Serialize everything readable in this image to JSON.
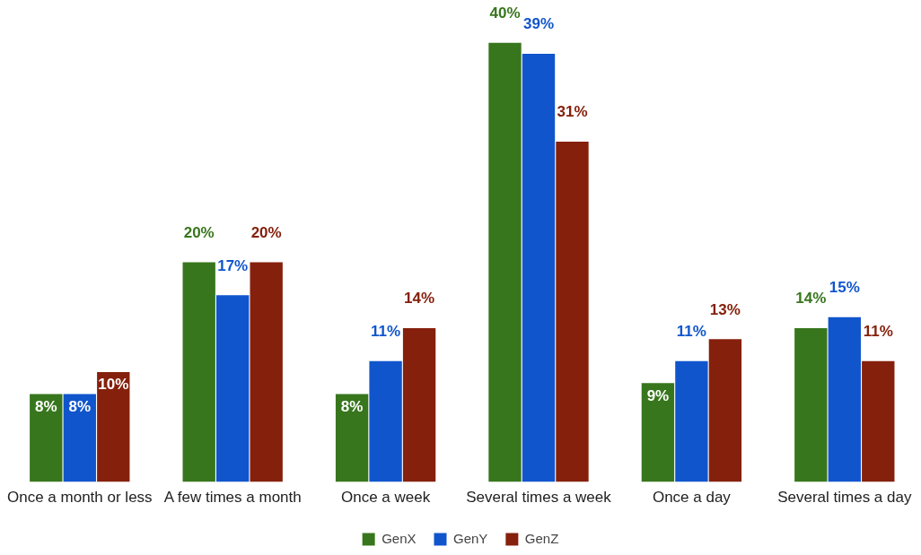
{
  "chart_data": {
    "type": "bar",
    "categories": [
      "Once a month or less",
      "A few times a month",
      "Once a week",
      "Several times a week",
      "Once a day",
      "Several times a day"
    ],
    "series": [
      {
        "name": "GenX",
        "color": "#38761d",
        "values": [
          8,
          20,
          8,
          40,
          9,
          14
        ],
        "value_labels": [
          "8%",
          "20%",
          "8%",
          "40%",
          "9%",
          "14%"
        ]
      },
      {
        "name": "GenY",
        "color": "#1155cc",
        "values": [
          8,
          17,
          11,
          39,
          11,
          15
        ],
        "value_labels": [
          "8%",
          "17%",
          "11%",
          "39%",
          "11%",
          "15%"
        ]
      },
      {
        "name": "GenZ",
        "color": "#85200c",
        "values": [
          10,
          20,
          14,
          31,
          13,
          11
        ],
        "value_labels": [
          "10%",
          "20%",
          "14%",
          "31%",
          "13%",
          "11%"
        ]
      }
    ],
    "legend": "bottom"
  }
}
